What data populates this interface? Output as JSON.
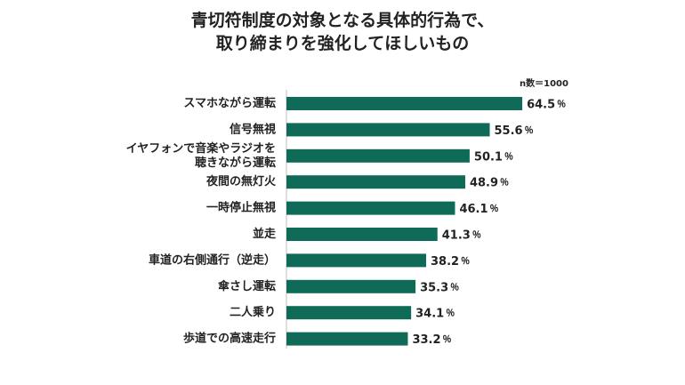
{
  "title": [
    "青切符制度の対象となる具体的行為で、",
    "取り締まりを強化してほしいもの"
  ],
  "note": "n数＝1000",
  "unit": "％",
  "colors": {
    "bar": "#0f6b57",
    "axis": "#bfbfbf"
  },
  "chart_data": {
    "type": "bar",
    "orientation": "horizontal",
    "categories": [
      [
        "スマホながら運転"
      ],
      [
        "信号無視"
      ],
      [
        "イヤフォンで音楽やラジオを",
        "聴きながら運転"
      ],
      [
        "夜間の無灯火"
      ],
      [
        "一時停止無視"
      ],
      [
        "並走"
      ],
      [
        "車道の右側通行（逆走）"
      ],
      [
        "傘さし運転"
      ],
      [
        "二人乗り"
      ],
      [
        "歩道での高速走行"
      ]
    ],
    "values": [
      64.5,
      55.6,
      50.1,
      48.9,
      46.1,
      41.3,
      38.2,
      35.3,
      34.1,
      33.2
    ],
    "xlim": [
      0,
      100
    ],
    "grid": false,
    "legend": "none"
  }
}
